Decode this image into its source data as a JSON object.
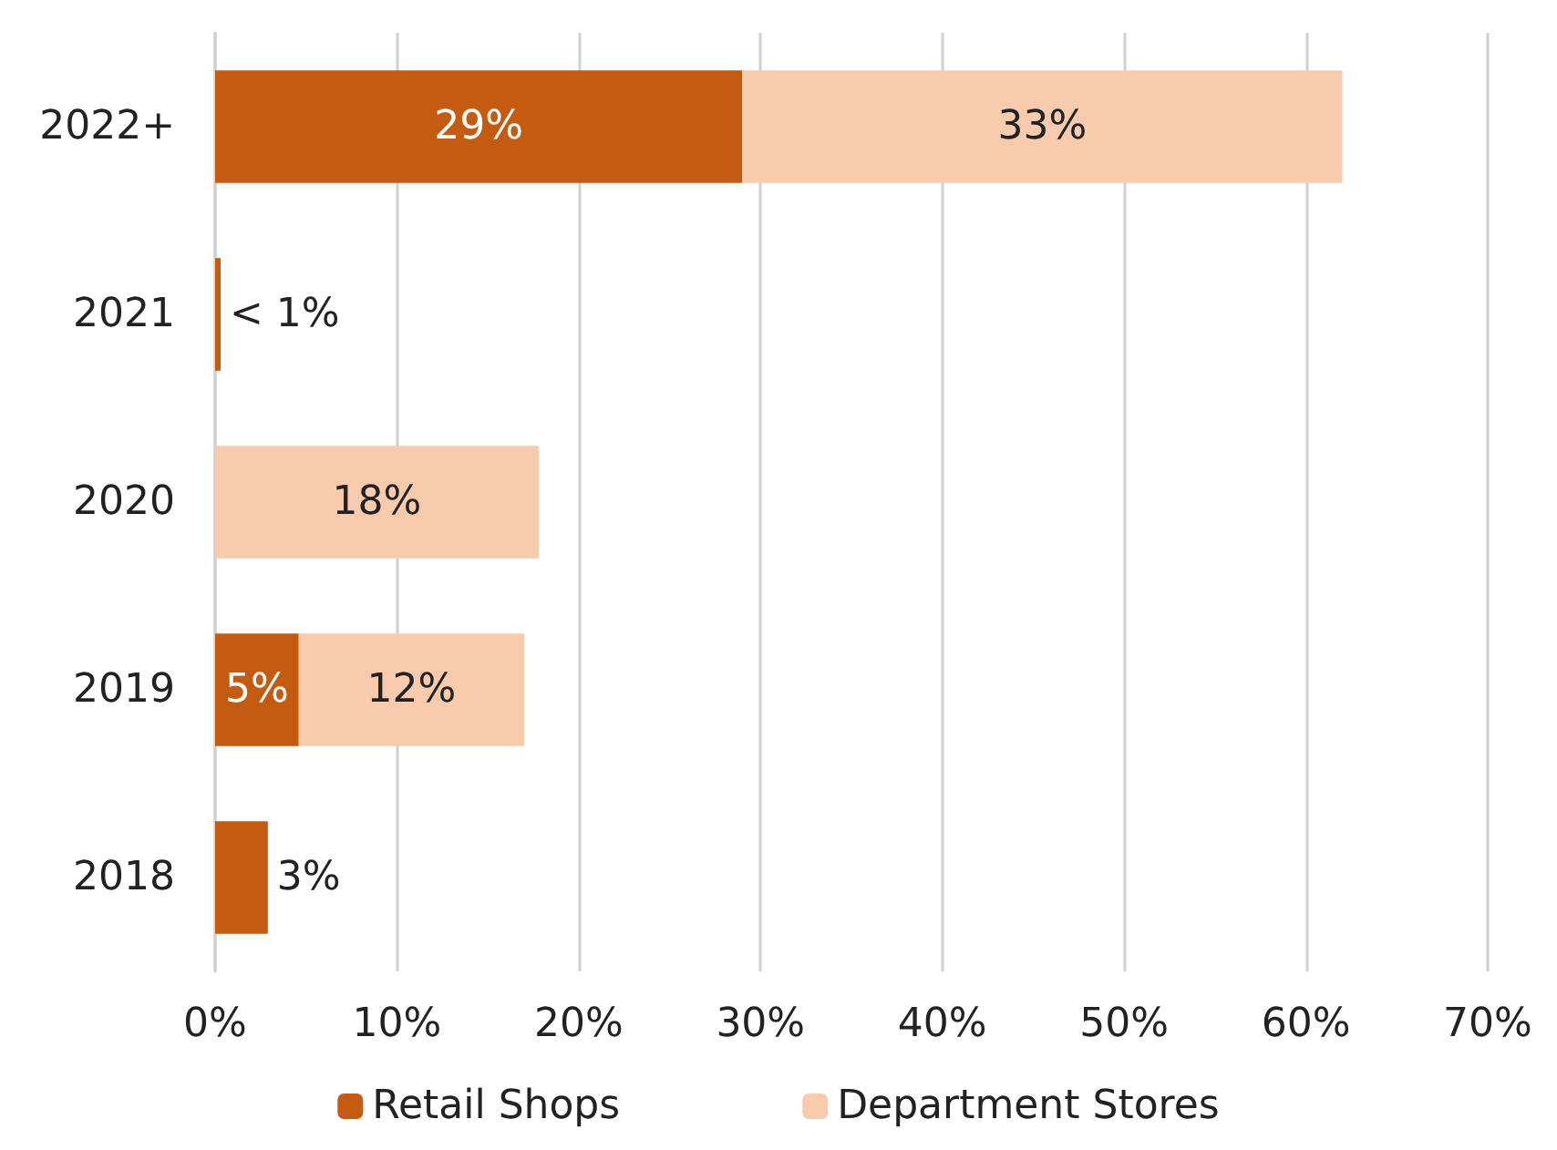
{
  "chart_data": {
    "type": "bar",
    "orientation": "horizontal",
    "stacked": true,
    "categories": [
      "2022+",
      "2021",
      "2020",
      "2019",
      "2018"
    ],
    "series": [
      {
        "name": "Retail Shops",
        "color": "#c55a11",
        "values": [
          29,
          0.3,
          null,
          4.6,
          2.9
        ],
        "value_labels": [
          "29%",
          "< 1%",
          null,
          "5%",
          "3%"
        ]
      },
      {
        "name": "Department Stores",
        "color": "#f8cbad",
        "values": [
          33,
          null,
          17.8,
          12.4,
          null
        ],
        "value_labels": [
          "33%",
          null,
          "18%",
          "12%",
          null
        ]
      }
    ],
    "xlim": [
      0,
      70
    ],
    "xticks": [
      {
        "value": 0,
        "label": "0%"
      },
      {
        "value": 10,
        "label": "10%"
      },
      {
        "value": 20,
        "label": "20%"
      },
      {
        "value": 30,
        "label": "30%"
      },
      {
        "value": 40,
        "label": "40%"
      },
      {
        "value": 50,
        "label": "50%"
      },
      {
        "value": 60,
        "label": "60%"
      },
      {
        "value": 70,
        "label": "70%"
      }
    ],
    "grid": "x",
    "legend": "bottom"
  }
}
